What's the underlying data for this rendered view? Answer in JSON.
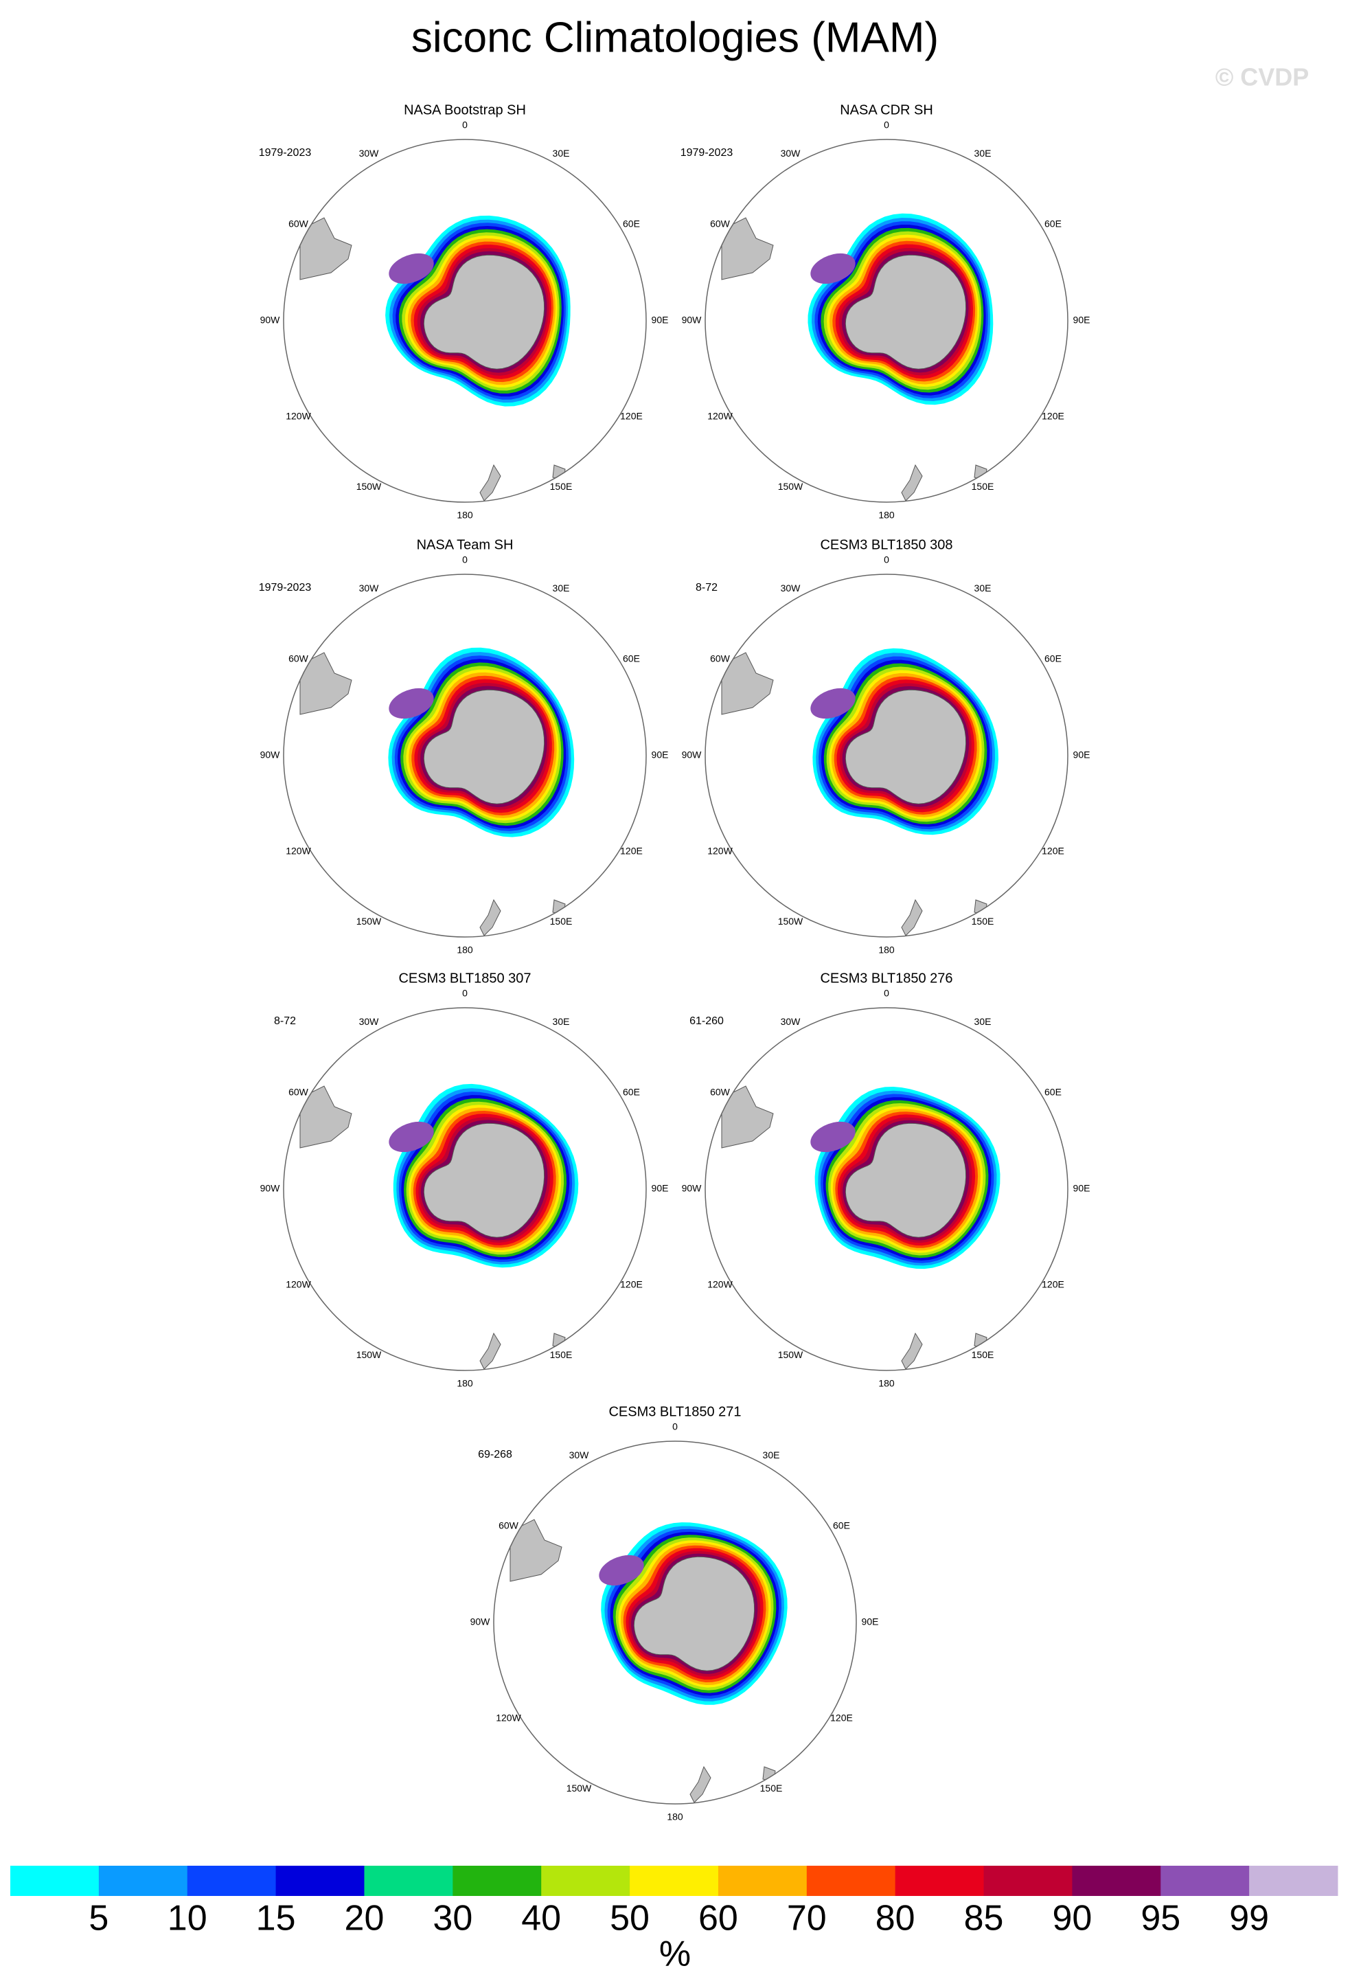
{
  "title": "siconc Climatologies (MAM)",
  "watermark": "© CVDP",
  "panels": [
    {
      "title": "NASA Bootstrap SH",
      "period": "1979-2023"
    },
    {
      "title": "NASA CDR SH",
      "period": "1979-2023"
    },
    {
      "title": "NASA Team SH",
      "period": "1979-2023"
    },
    {
      "title": "CESM3 BLT1850 308",
      "period": "8-72"
    },
    {
      "title": "CESM3 BLT1850 307",
      "period": "8-72"
    },
    {
      "title": "CESM3 BLT1850 276",
      "period": "61-260"
    },
    {
      "title": "CESM3 BLT1850 271",
      "period": "69-268"
    }
  ],
  "longitude_labels": [
    "0",
    "30E",
    "60E",
    "90E",
    "120E",
    "150E",
    "180",
    "150W",
    "120W",
    "90W",
    "60W",
    "30W"
  ],
  "colorbar": {
    "ticks": [
      5,
      10,
      15,
      20,
      30,
      40,
      50,
      60,
      70,
      80,
      85,
      90,
      95,
      99
    ],
    "colors": [
      "#00ffff",
      "#0a9bff",
      "#0844ff",
      "#0000dc",
      "#00dc82",
      "#22b40f",
      "#b4e60c",
      "#ffef00",
      "#ffb400",
      "#ff4800",
      "#e8001c",
      "#c00032",
      "#800058",
      "#8c50b4",
      "#c8b4dc"
    ],
    "unit": "%"
  }
}
